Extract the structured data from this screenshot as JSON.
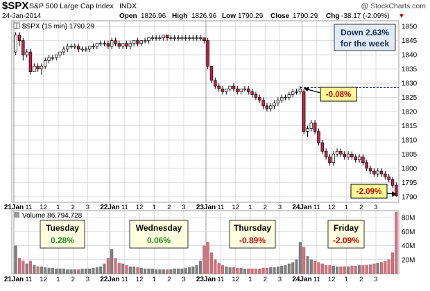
{
  "header": {
    "symbol": "$SPX",
    "name": "S&P 500 Large Cap Index",
    "exchange": "INDX",
    "date": "24-Jan-2014",
    "open_label": "Open",
    "open_value": "1826.96",
    "high_label": "High",
    "high_value": "1826.96",
    "low_label": "Low",
    "low_value": "1790.29",
    "close_label": "Close",
    "close_value": "1790.29",
    "chg_label": "Chg",
    "chg_value": "-38.17 (-2.09%)",
    "chg_arrow": "▼",
    "watermark": "@ StockCharts.com"
  },
  "price_panel": {
    "legend": "$SPX (15 min) 1790.29",
    "week_box_line1": "Down 2.63%",
    "week_box_line2": "for the week",
    "callout_ref": "-0.08%",
    "callout_end": "-2.09%"
  },
  "volume_panel": {
    "legend": "Volume 86,794,728",
    "y_tick_labels": [
      "80M",
      "60M",
      "40M",
      "20M"
    ],
    "day_boxes": [
      {
        "day": "Tuesday",
        "pct": "0.28%",
        "color": "#228b22"
      },
      {
        "day": "Wednesday",
        "pct": "0.06%",
        "color": "#228b22"
      },
      {
        "day": "Thursday",
        "pct": "-0.89%",
        "color": "#cc0000"
      },
      {
        "day": "Friday",
        "pct": "-2.09%",
        "color": "#cc0000"
      }
    ]
  },
  "x_tick_labels": [
    "21Jan",
    "11",
    "12",
    "1",
    "2",
    "3",
    "22Jan",
    "11",
    "12",
    "1",
    "2",
    "3",
    "23Jan",
    "11",
    "12",
    "1",
    "2",
    "3",
    "24Jan",
    "11",
    "12",
    "1",
    "2",
    "3"
  ],
  "colors": {
    "up": "#ffffff",
    "down": "#cc1f44",
    "grid": "#dcdcdc",
    "vol_gray": "#808080",
    "vol_red": "#e06b7c",
    "ref_line": "#00008b",
    "callout_bg": "#ffff99"
  },
  "chart_data": {
    "type": "candlestick",
    "title": "$SPX S&P 500 Large Cap Index INDX",
    "interval": "15 min",
    "y_ticks": [
      1790,
      1795,
      1800,
      1805,
      1810,
      1815,
      1820,
      1825,
      1830,
      1835,
      1840,
      1845,
      1850
    ],
    "ylim": [
      1788,
      1852
    ],
    "volume_ylim": [
      0,
      90
    ],
    "volume_unit": "M",
    "reference_level": 1828.46,
    "days": [
      {
        "label": "21Jan",
        "ohlc": [
          [
            1841,
            1848,
            1840,
            1847
          ],
          [
            1847,
            1848,
            1843,
            1845
          ],
          [
            1845,
            1846,
            1838,
            1840
          ],
          [
            1840,
            1842,
            1839,
            1841
          ],
          [
            1841,
            1842,
            1833,
            1834
          ],
          [
            1834,
            1837,
            1834,
            1836
          ],
          [
            1836,
            1837,
            1834,
            1835
          ],
          [
            1835,
            1837,
            1833,
            1836
          ],
          [
            1836,
            1839,
            1835,
            1838
          ],
          [
            1838,
            1840,
            1837,
            1839
          ],
          [
            1839,
            1840,
            1838,
            1839
          ],
          [
            1839,
            1840,
            1838,
            1840
          ],
          [
            1840,
            1841,
            1839,
            1841
          ],
          [
            1841,
            1843,
            1840,
            1842
          ],
          [
            1842,
            1844,
            1841,
            1843
          ],
          [
            1843,
            1844,
            1842,
            1843
          ],
          [
            1843,
            1844,
            1842,
            1843
          ],
          [
            1843,
            1844,
            1841,
            1842
          ],
          [
            1842,
            1843,
            1841,
            1842
          ],
          [
            1842,
            1843,
            1841,
            1842
          ],
          [
            1842,
            1843,
            1841,
            1843
          ],
          [
            1843,
            1844,
            1842,
            1843
          ],
          [
            1843,
            1844,
            1842,
            1844
          ],
          [
            1844,
            1845,
            1843,
            1844
          ],
          [
            1844,
            1845,
            1843,
            1844
          ],
          [
            1844,
            1845,
            1842,
            1843
          ]
        ],
        "volume": [
          40,
          22,
          18,
          14,
          18,
          12,
          10,
          10,
          9,
          8,
          8,
          7,
          7,
          7,
          6,
          6,
          6,
          6,
          7,
          7,
          7,
          8,
          9,
          10,
          14,
          22
        ]
      },
      {
        "label": "22Jan",
        "ohlc": [
          [
            1843,
            1846,
            1842,
            1845
          ],
          [
            1845,
            1846,
            1843,
            1844
          ],
          [
            1844,
            1845,
            1842,
            1843
          ],
          [
            1843,
            1844,
            1842,
            1844
          ],
          [
            1844,
            1845,
            1842,
            1843
          ],
          [
            1843,
            1845,
            1842,
            1844
          ],
          [
            1844,
            1845,
            1843,
            1845
          ],
          [
            1845,
            1846,
            1843,
            1844
          ],
          [
            1844,
            1845,
            1843,
            1845
          ],
          [
            1845,
            1846,
            1844,
            1845
          ],
          [
            1845,
            1846,
            1844,
            1846
          ],
          [
            1846,
            1847,
            1845,
            1846
          ],
          [
            1846,
            1847,
            1845,
            1846
          ],
          [
            1846,
            1847,
            1845,
            1846
          ],
          [
            1846,
            1847,
            1845,
            1847
          ],
          [
            1847,
            1847,
            1845,
            1846
          ],
          [
            1846,
            1847,
            1845,
            1846
          ],
          [
            1846,
            1847,
            1845,
            1846
          ],
          [
            1846,
            1847,
            1845,
            1846
          ],
          [
            1846,
            1847,
            1845,
            1846
          ],
          [
            1846,
            1847,
            1845,
            1846
          ],
          [
            1846,
            1847,
            1845,
            1846
          ],
          [
            1846,
            1847,
            1845,
            1846
          ],
          [
            1846,
            1847,
            1845,
            1846
          ],
          [
            1846,
            1847,
            1845,
            1846
          ],
          [
            1846,
            1846,
            1844,
            1845
          ]
        ],
        "volume": [
          35,
          22,
          15,
          14,
          12,
          10,
          10,
          9,
          8,
          7,
          7,
          7,
          6,
          6,
          6,
          6,
          6,
          7,
          7,
          7,
          8,
          9,
          10,
          12,
          18,
          40
        ]
      },
      {
        "label": "23Jan",
        "ohlc": [
          [
            1845,
            1846,
            1835,
            1836
          ],
          [
            1836,
            1836,
            1830,
            1831
          ],
          [
            1831,
            1832,
            1828,
            1829
          ],
          [
            1829,
            1830,
            1827,
            1828
          ],
          [
            1828,
            1829,
            1826,
            1827
          ],
          [
            1827,
            1828,
            1826,
            1828
          ],
          [
            1828,
            1829,
            1827,
            1829
          ],
          [
            1829,
            1830,
            1827,
            1828
          ],
          [
            1828,
            1829,
            1826,
            1827
          ],
          [
            1827,
            1828,
            1826,
            1828
          ],
          [
            1828,
            1829,
            1827,
            1828
          ],
          [
            1828,
            1829,
            1826,
            1827
          ],
          [
            1827,
            1828,
            1825,
            1826
          ],
          [
            1826,
            1827,
            1824,
            1825
          ],
          [
            1825,
            1826,
            1823,
            1824
          ],
          [
            1824,
            1825,
            1821,
            1822
          ],
          [
            1822,
            1823,
            1820,
            1821
          ],
          [
            1821,
            1823,
            1820,
            1822
          ],
          [
            1822,
            1824,
            1821,
            1823
          ],
          [
            1823,
            1825,
            1822,
            1824
          ],
          [
            1824,
            1826,
            1823,
            1825
          ],
          [
            1825,
            1826,
            1824,
            1825
          ],
          [
            1825,
            1827,
            1824,
            1826
          ],
          [
            1826,
            1828,
            1825,
            1827
          ],
          [
            1827,
            1828,
            1826,
            1827
          ],
          [
            1827,
            1829,
            1826,
            1828
          ]
        ],
        "volume": [
          45,
          30,
          20,
          15,
          12,
          10,
          9,
          9,
          8,
          8,
          7,
          7,
          7,
          7,
          7,
          8,
          8,
          9,
          9,
          10,
          11,
          12,
          14,
          16,
          20,
          45
        ]
      },
      {
        "label": "24Jan",
        "ohlc": [
          [
            1827,
            1828,
            1812,
            1813
          ],
          [
            1813,
            1815,
            1811,
            1814
          ],
          [
            1814,
            1817,
            1813,
            1816
          ],
          [
            1816,
            1817,
            1812,
            1813
          ],
          [
            1813,
            1814,
            1808,
            1809
          ],
          [
            1809,
            1810,
            1805,
            1806
          ],
          [
            1806,
            1807,
            1803,
            1804
          ],
          [
            1804,
            1805,
            1801,
            1802
          ],
          [
            1802,
            1806,
            1801,
            1805
          ],
          [
            1805,
            1807,
            1804,
            1806
          ],
          [
            1806,
            1807,
            1804,
            1805
          ],
          [
            1805,
            1806,
            1803,
            1804
          ],
          [
            1804,
            1806,
            1803,
            1805
          ],
          [
            1805,
            1806,
            1803,
            1804
          ],
          [
            1804,
            1805,
            1802,
            1803
          ],
          [
            1803,
            1805,
            1802,
            1804
          ],
          [
            1804,
            1805,
            1801,
            1802
          ],
          [
            1802,
            1803,
            1799,
            1800
          ],
          [
            1800,
            1801,
            1798,
            1799
          ],
          [
            1799,
            1800,
            1797,
            1798
          ],
          [
            1798,
            1800,
            1797,
            1799
          ],
          [
            1799,
            1800,
            1797,
            1798
          ],
          [
            1798,
            1799,
            1796,
            1797
          ],
          [
            1797,
            1798,
            1795,
            1796
          ],
          [
            1796,
            1797,
            1793,
            1794
          ],
          [
            1794,
            1795,
            1790,
            1790.29
          ]
        ],
        "volume": [
          38,
          25,
          20,
          18,
          16,
          14,
          12,
          12,
          11,
          10,
          10,
          10,
          10,
          11,
          11,
          12,
          12,
          12,
          13,
          14,
          15,
          16,
          18,
          20,
          30,
          88
        ]
      }
    ]
  }
}
